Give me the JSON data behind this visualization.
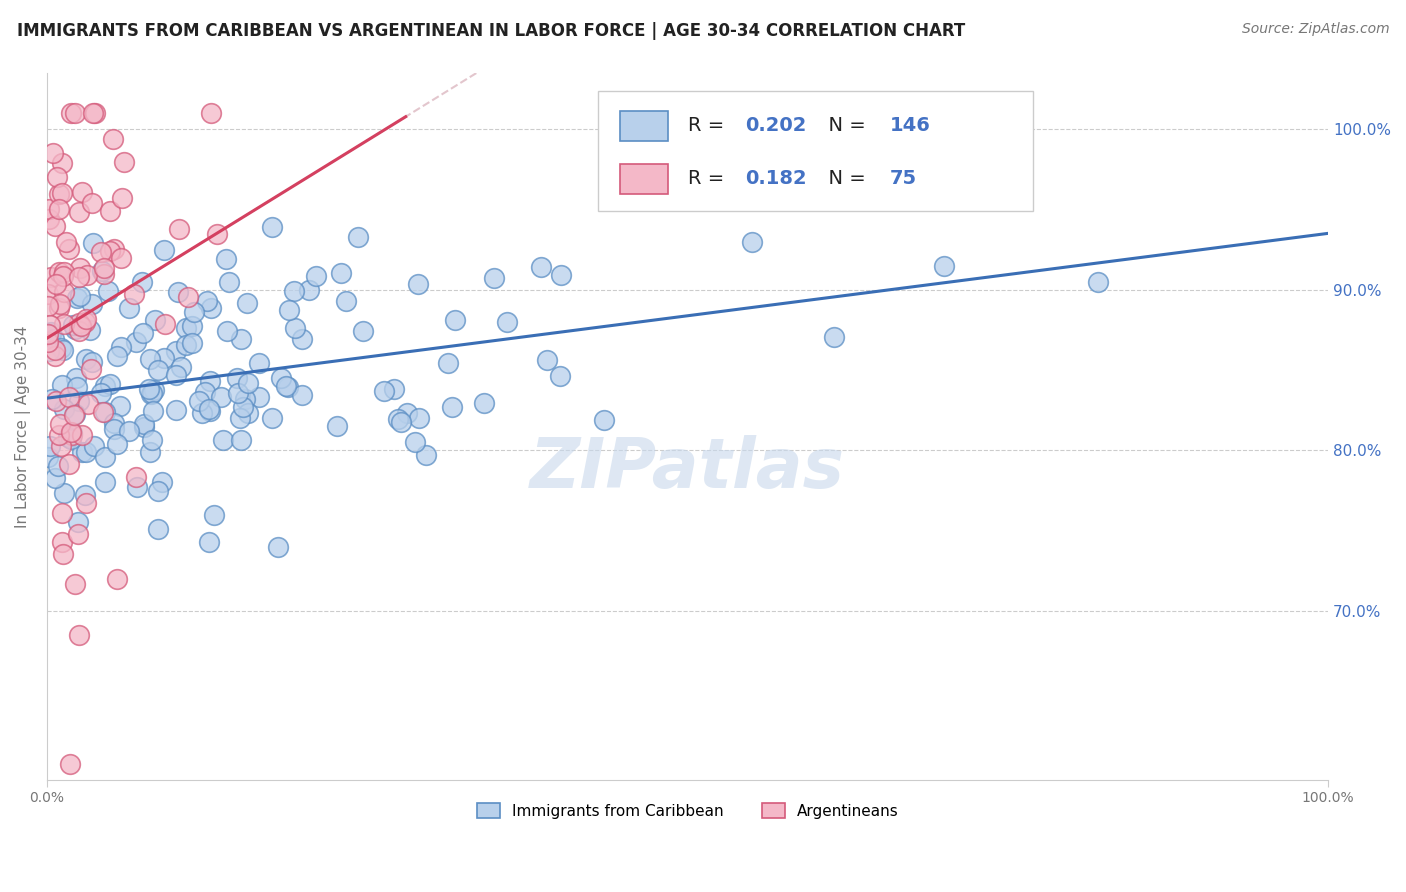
{
  "title": "IMMIGRANTS FROM CARIBBEAN VS ARGENTINEAN IN LABOR FORCE | AGE 30-34 CORRELATION CHART",
  "source": "Source: ZipAtlas.com",
  "ylabel": "In Labor Force | Age 30-34",
  "bottom_legend": [
    "Immigrants from Caribbean",
    "Argentineans"
  ],
  "caribbean_color": "#b8d0eb",
  "argentinean_color": "#f4b8c8",
  "caribbean_edge_color": "#5b8ec4",
  "argentinean_edge_color": "#d45a7a",
  "caribbean_line_color": "#3a6eb5",
  "argentinean_line_color": "#d44060",
  "diagonal_line_color": "#e0c0c8",
  "r_caribbean": 0.202,
  "r_argentinean": 0.182,
  "n_caribbean": 146,
  "n_argentinean": 75,
  "xlim": [
    0.0,
    1.0
  ],
  "ylim": [
    0.595,
    1.035
  ],
  "y_ticks": [
    0.7,
    0.8,
    0.9,
    1.0
  ],
  "background_color": "#ffffff",
  "watermark": "ZIPatlas",
  "title_color": "#222222",
  "source_color": "#777777",
  "tick_color": "#777777",
  "right_tick_color": "#4472c4",
  "legend_text_color_label": "#222222",
  "legend_text_color_values": "#4472c4",
  "watermark_color": "#c8d8ec",
  "watermark_alpha": 0.6,
  "title_fontsize": 12,
  "source_fontsize": 10,
  "axis_label_fontsize": 11,
  "tick_fontsize": 10,
  "legend_fontsize": 14,
  "watermark_fontsize": 50
}
